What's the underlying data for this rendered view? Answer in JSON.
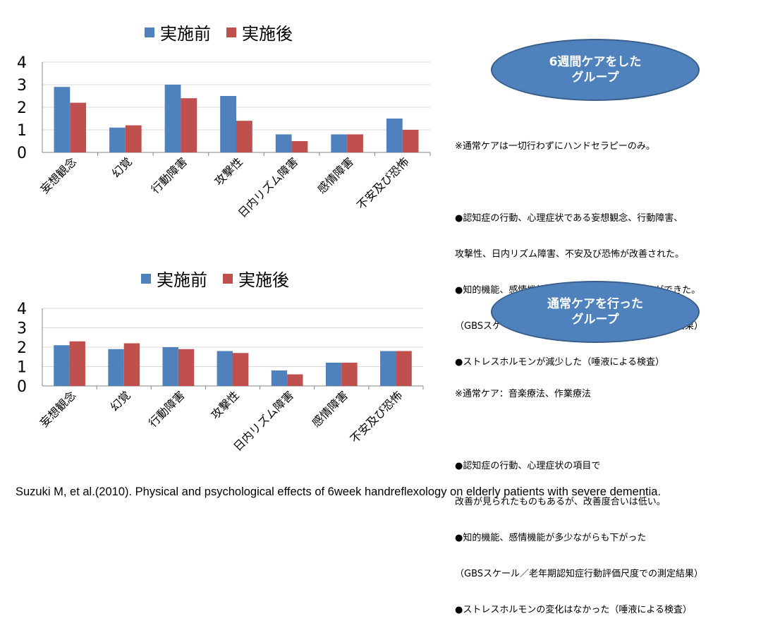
{
  "charts": [
    {
      "legend": [
        "実施前",
        "実施後"
      ],
      "group_label": "6週間ケアをした\nグループ",
      "note_lines": [
        "※通常ケアは一切行わずにハンドセラピーのみ。",
        "",
        "●認知症の行動、心理症状である妄想観念、行動障害、",
        "攻撃性、日内リズム障害、不安及び恐怖が改善された。",
        "●知的機能、感情機能が下がらず、維持することができた。",
        "（GBSスケール／老年期認知症行動評価尺度での測定結果）",
        "●ストレスホルモンが減少した（唾液による検査）"
      ]
    },
    {
      "legend": [
        "実施前",
        "実施後"
      ],
      "group_label": "通常ケアを行った\nグループ",
      "note_lines": [
        "※通常ケア：音楽療法、作業療法",
        "",
        "●認知症の行動、心理症状の項目で",
        "改善が見られたものもあるが、改善度合いは低い。",
        "●知的機能、感情機能が多少ながらも下がった",
        "（GBSスケール／老年期認知症行動評価尺度での測定結果）",
        "●ストレスホルモンの変化はなかった（唾液による検査）"
      ]
    }
  ],
  "citation": "Suzuki M, et al.(2010). Physical and psychological effects of 6week handreflexology on elderly patients with severe dementia.",
  "colors": {
    "before": "#4f81bd",
    "after": "#c0504d",
    "grid": "#d9d9d9",
    "axis": "#868686"
  },
  "chart_data": [
    {
      "type": "bar",
      "categories": [
        "妄想観念",
        "幻覚",
        "行動障害",
        "攻撃性",
        "日内リズム障害",
        "感情障害",
        "不安及び恐怖"
      ],
      "series": [
        {
          "name": "実施前",
          "values": [
            2.9,
            1.1,
            3.0,
            2.5,
            0.8,
            0.8,
            1.5
          ]
        },
        {
          "name": "実施後",
          "values": [
            2.2,
            1.2,
            2.4,
            1.4,
            0.5,
            0.8,
            1.0
          ]
        }
      ],
      "yticks": [
        0,
        1,
        2,
        3,
        4
      ],
      "ylim": [
        0,
        4
      ],
      "grid": true,
      "legend_position": "top"
    },
    {
      "type": "bar",
      "categories": [
        "妄想観念",
        "幻覚",
        "行動障害",
        "攻撃性",
        "日内リズム障害",
        "感情障害",
        "不安及び恐怖"
      ],
      "series": [
        {
          "name": "実施前",
          "values": [
            2.1,
            1.9,
            2.0,
            1.8,
            0.8,
            1.2,
            1.8
          ]
        },
        {
          "name": "実施後",
          "values": [
            2.3,
            2.2,
            1.9,
            1.7,
            0.6,
            1.2,
            1.8
          ]
        }
      ],
      "yticks": [
        0,
        1,
        2,
        3,
        4
      ],
      "ylim": [
        0,
        4
      ],
      "grid": true,
      "legend_position": "top"
    }
  ]
}
